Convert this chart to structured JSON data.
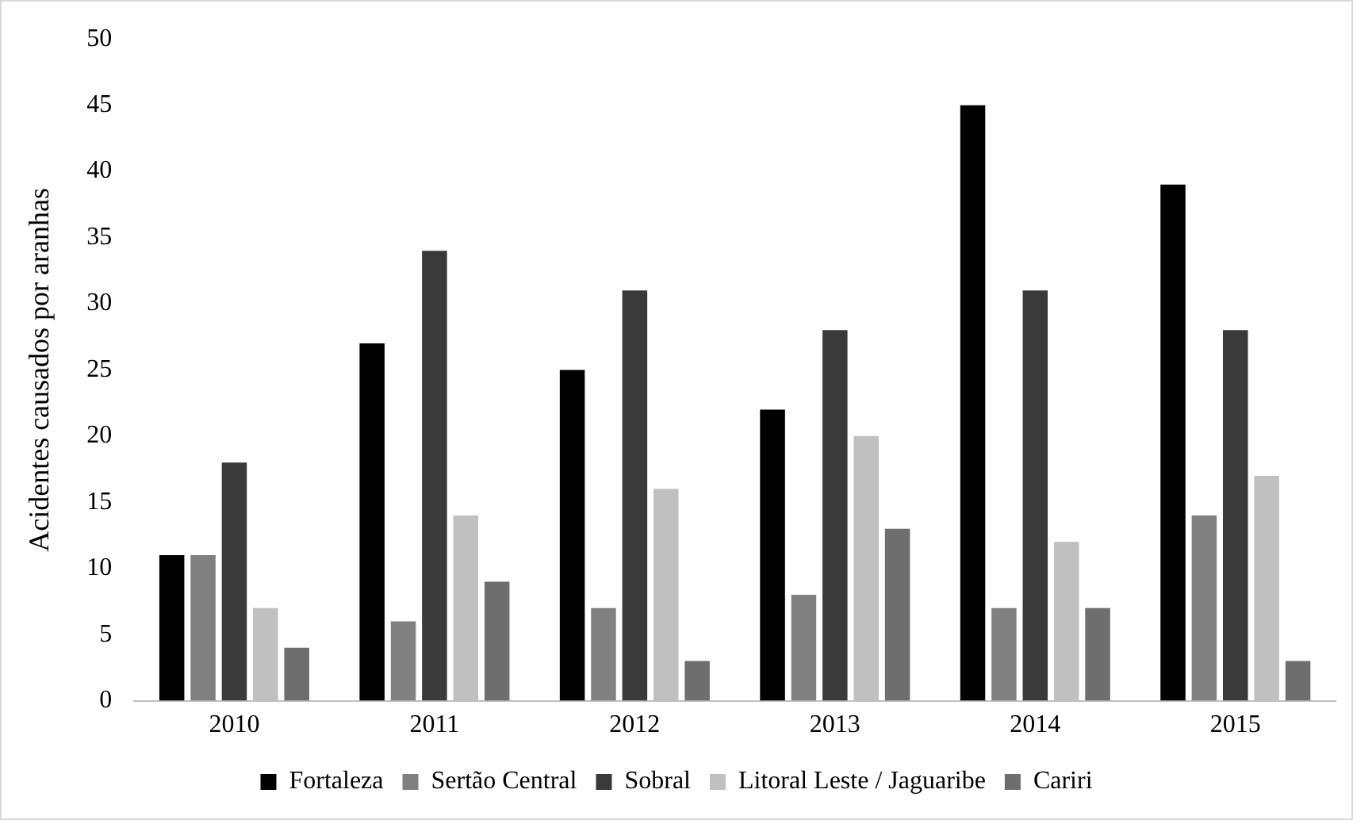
{
  "chart_data": {
    "type": "bar",
    "ylabel": "Acidentes causados por aranhas",
    "categories": [
      "2010",
      "2011",
      "2012",
      "2013",
      "2014",
      "2015"
    ],
    "series": [
      {
        "name": "Fortaleza",
        "color": "#000000",
        "values": [
          11,
          27,
          25,
          22,
          45,
          39
        ]
      },
      {
        "name": "Sertão Central",
        "color": "#808080",
        "values": [
          11,
          6,
          7,
          8,
          7,
          14
        ]
      },
      {
        "name": "Sobral",
        "color": "#3a3a3a",
        "values": [
          18,
          34,
          31,
          28,
          31,
          28
        ]
      },
      {
        "name": "Litoral Leste / Jaguaribe",
        "color": "#c0c0c0",
        "values": [
          7,
          14,
          16,
          20,
          12,
          17
        ]
      },
      {
        "name": "Cariri",
        "color": "#6e6e6e",
        "values": [
          4,
          9,
          3,
          13,
          7,
          3
        ]
      }
    ],
    "ylim": [
      0,
      50
    ],
    "yticks": [
      0,
      5,
      10,
      15,
      20,
      25,
      30,
      35,
      40,
      45,
      50
    ],
    "grid": false,
    "legend": "bottom"
  }
}
